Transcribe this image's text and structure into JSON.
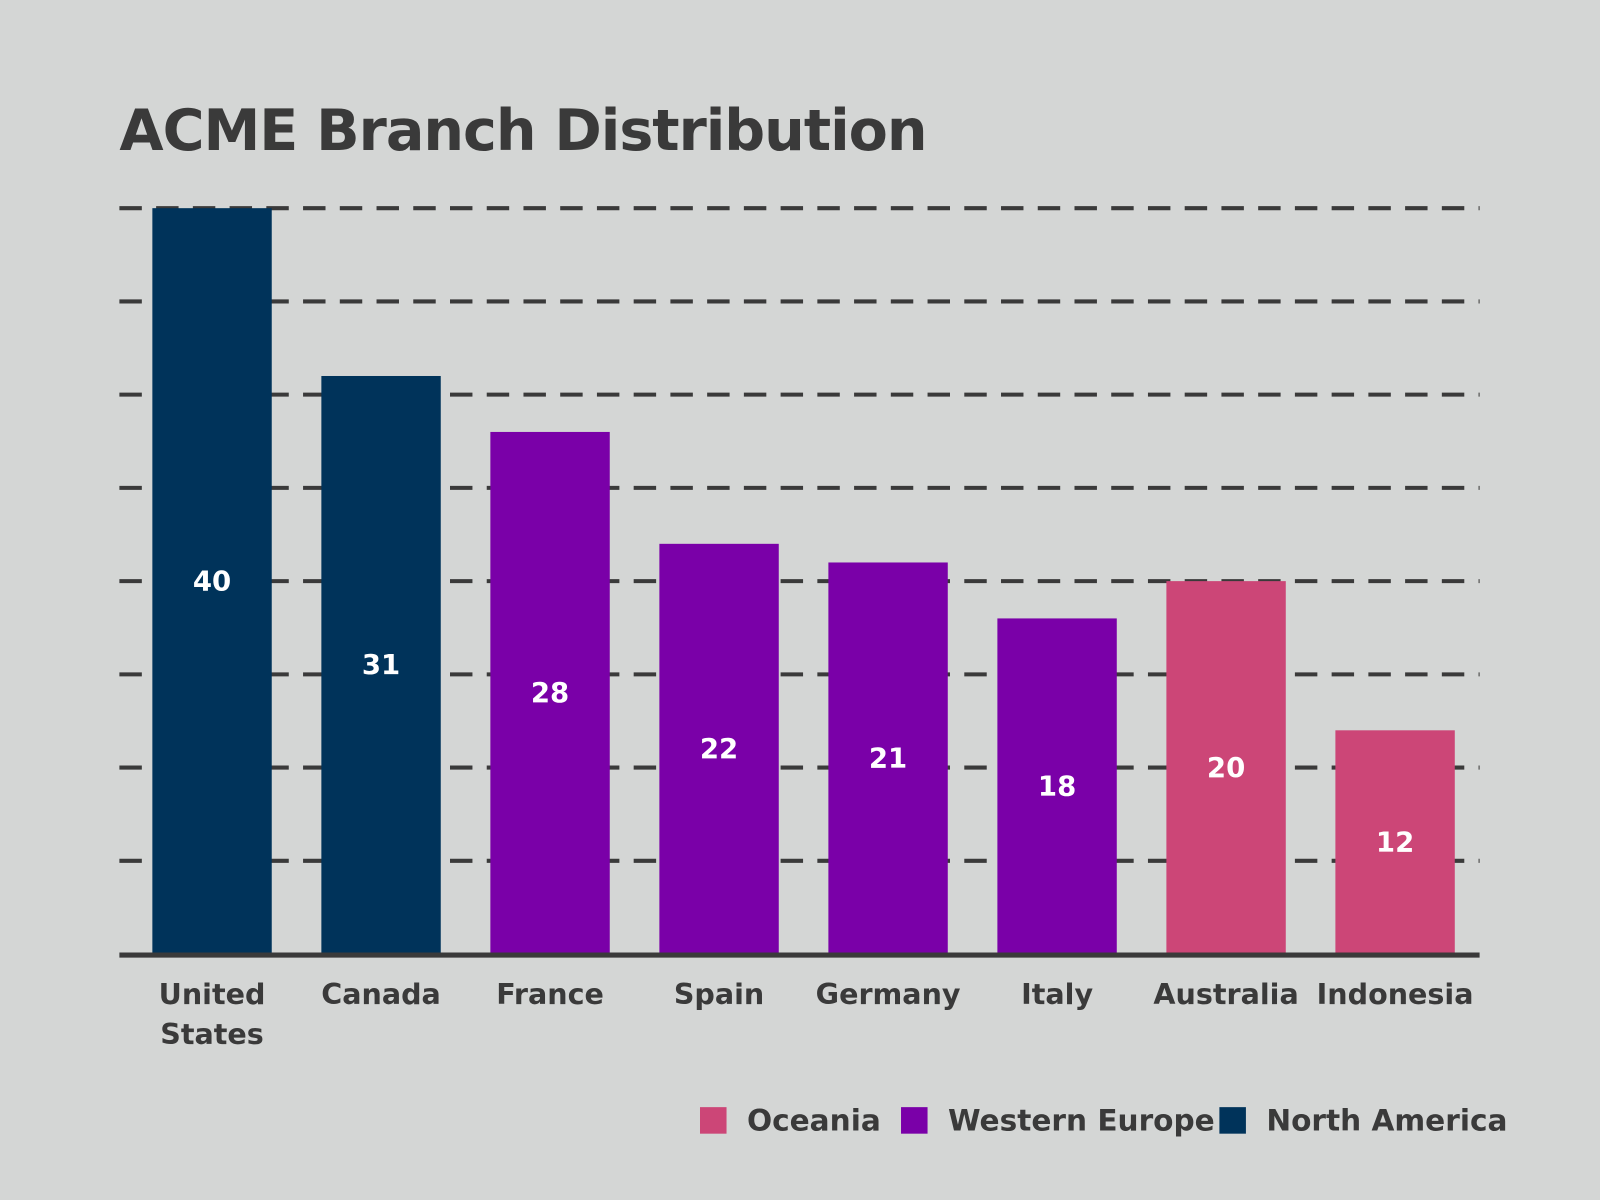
{
  "chart_data": {
    "type": "bar",
    "title": "ACME Branch Distribution",
    "xlabel": "",
    "ylabel": "",
    "ylim": [
      0,
      40
    ],
    "grid": true,
    "grid_step": 5,
    "legend_position": "bottom-right",
    "categories": [
      [
        "United",
        "States"
      ],
      [
        "Canada"
      ],
      [
        "France"
      ],
      [
        "Spain"
      ],
      [
        "Germany"
      ],
      [
        "Italy"
      ],
      [
        "Australia"
      ],
      [
        "Indonesia"
      ]
    ],
    "values": [
      40,
      31,
      28,
      22,
      21,
      18,
      20,
      12
    ],
    "groups": [
      "North America",
      "North America",
      "Western Europe",
      "Western Europe",
      "Western Europe",
      "Western Europe",
      "Oceania",
      "Oceania"
    ],
    "legend": [
      {
        "name": "Oceania",
        "color": "#cc4677"
      },
      {
        "name": "Western Europe",
        "color": "#7a00a8"
      },
      {
        "name": "North America",
        "color": "#00335a"
      }
    ]
  },
  "colors": {
    "background": "#d4d6d5",
    "text": "#3a3a3a",
    "grid": "#3a3a3a"
  }
}
